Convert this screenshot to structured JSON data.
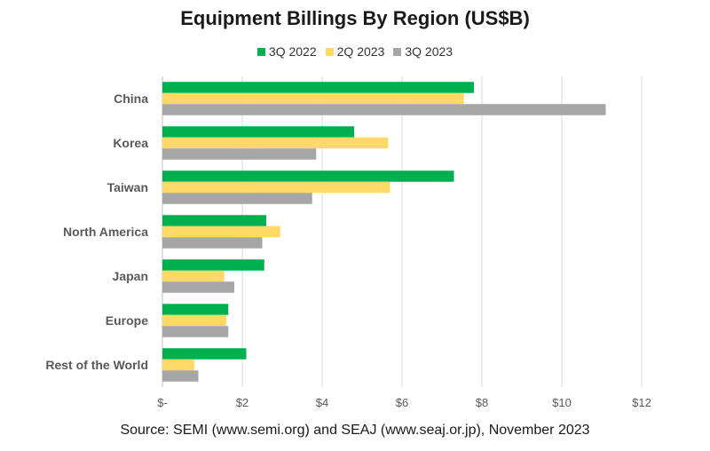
{
  "chart_data": {
    "type": "bar",
    "orientation": "horizontal",
    "title": "Equipment Billings By Region (US$B)",
    "categories": [
      "China",
      "Korea",
      "Taiwan",
      "North America",
      "Japan",
      "Europe",
      "Rest of the World"
    ],
    "series": [
      {
        "name": "3Q 2022",
        "color": "#00b050",
        "values": [
          7.8,
          4.8,
          7.3,
          2.6,
          2.55,
          1.65,
          2.1
        ]
      },
      {
        "name": "2Q 2023",
        "color": "#ffd966",
        "values": [
          7.55,
          5.65,
          5.7,
          2.95,
          1.55,
          1.6,
          0.8
        ]
      },
      {
        "name": "3Q 2023",
        "color": "#a6a6a6",
        "values": [
          11.1,
          3.85,
          3.75,
          2.5,
          1.8,
          1.65,
          0.9
        ]
      }
    ],
    "xlim": [
      0,
      12
    ],
    "x_ticks": [
      "$-",
      "$2",
      "$4",
      "$6",
      "$8",
      "$10",
      "$12"
    ],
    "grid": true,
    "legend_position": "top",
    "source": "Source: SEMI (www.semi.org) and SEAJ (www.seaj.or.jp), November 2023"
  }
}
